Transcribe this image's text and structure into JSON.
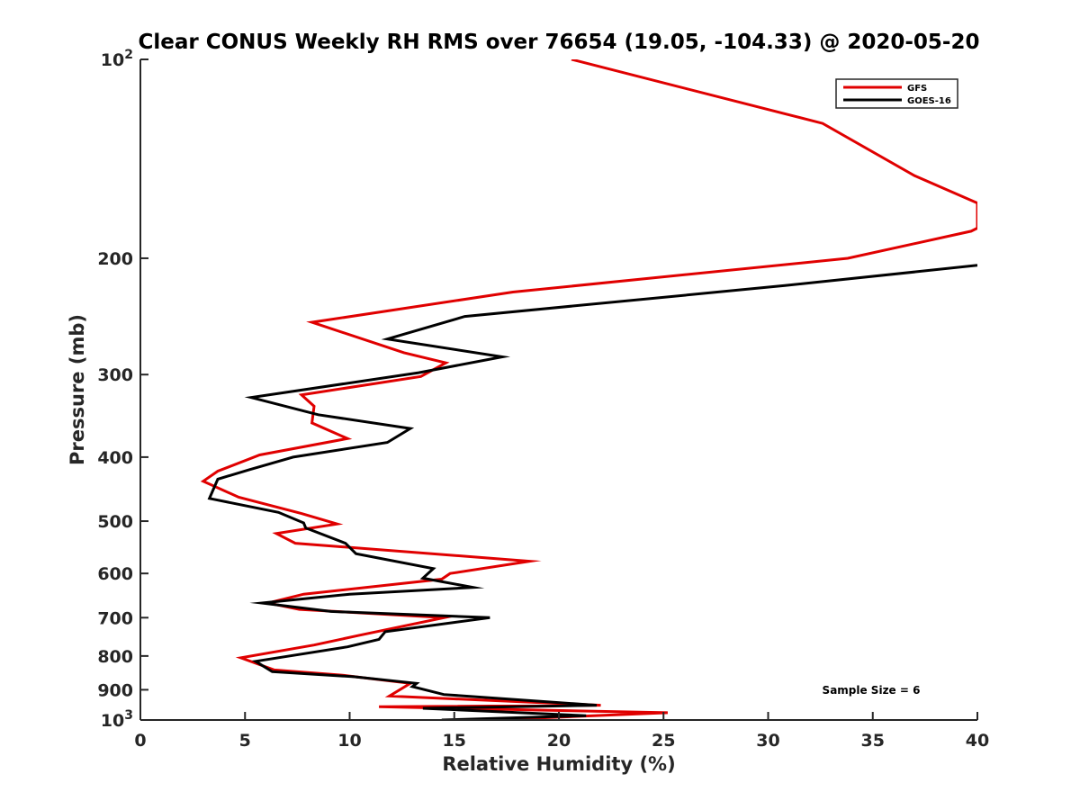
{
  "chart_data": {
    "type": "line",
    "title": "Clear CONUS Weekly RH RMS over 76654 (19.05, -104.33) @ 2020-05-20",
    "xlabel": "Relative Humidity (%)",
    "ylabel": "Pressure (mb)",
    "xlim": [
      0,
      40
    ],
    "ylim": [
      100,
      1000
    ],
    "yscale": "log",
    "yreversed": true,
    "xticks": [
      0,
      5,
      10,
      15,
      20,
      25,
      30,
      35,
      40
    ],
    "xtick_labels": [
      "0",
      "5",
      "10",
      "15",
      "20",
      "25",
      "30",
      "35",
      "40"
    ],
    "yticks": [
      100,
      200,
      300,
      400,
      500,
      600,
      700,
      800,
      900,
      1000
    ],
    "ytick_labels": [
      {
        "base": "10",
        "exp": "2"
      },
      {
        "base": "200",
        "exp": ""
      },
      {
        "base": "300",
        "exp": ""
      },
      {
        "base": "400",
        "exp": ""
      },
      {
        "base": "500",
        "exp": ""
      },
      {
        "base": "600",
        "exp": ""
      },
      {
        "base": "700",
        "exp": ""
      },
      {
        "base": "800",
        "exp": ""
      },
      {
        "base": "900",
        "exp": ""
      },
      {
        "base": "10",
        "exp": "3"
      }
    ],
    "legend_position": "top-right",
    "annotation": "Sample Size = 6",
    "series": [
      {
        "name": "GFS",
        "color": "#e00000",
        "points": [
          [
            20.6,
            100
          ],
          [
            32.6,
            125
          ],
          [
            37.0,
            150
          ],
          [
            40.0,
            165
          ],
          [
            40.0,
            180
          ],
          [
            39.7,
            182
          ],
          [
            33.8,
            200
          ],
          [
            17.8,
            225
          ],
          [
            8.2,
            250
          ],
          [
            12.6,
            278
          ],
          [
            14.6,
            288
          ],
          [
            13.4,
            302
          ],
          [
            7.7,
            322
          ],
          [
            8.3,
            335
          ],
          [
            8.2,
            355
          ],
          [
            9.9,
            375
          ],
          [
            5.7,
            397
          ],
          [
            3.7,
            420
          ],
          [
            3.0,
            435
          ],
          [
            4.7,
            460
          ],
          [
            7.7,
            487
          ],
          [
            9.4,
            505
          ],
          [
            6.5,
            522
          ],
          [
            7.4,
            540
          ],
          [
            18.6,
            575
          ],
          [
            14.8,
            600
          ],
          [
            14.4,
            612
          ],
          [
            7.8,
            645
          ],
          [
            6.1,
            665
          ],
          [
            7.6,
            680
          ],
          [
            14.5,
            700
          ],
          [
            10.4,
            745
          ],
          [
            8.3,
            770
          ],
          [
            4.8,
            805
          ],
          [
            6.4,
            840
          ],
          [
            9.6,
            855
          ],
          [
            12.9,
            880
          ],
          [
            11.9,
            920
          ],
          [
            22.0,
            950
          ],
          [
            11.4,
            955
          ],
          [
            25.2,
            975
          ],
          [
            16.7,
            1000
          ]
        ]
      },
      {
        "name": "GOES-16",
        "color": "#000000",
        "points": [
          [
            40.0,
            205
          ],
          [
            30.8,
            220
          ],
          [
            15.5,
            245
          ],
          [
            11.8,
            265
          ],
          [
            17.3,
            282
          ],
          [
            13.3,
            298
          ],
          [
            5.3,
            325
          ],
          [
            8.5,
            345
          ],
          [
            12.9,
            362
          ],
          [
            11.8,
            380
          ],
          [
            7.3,
            400
          ],
          [
            5.2,
            418
          ],
          [
            3.7,
            432
          ],
          [
            3.3,
            462
          ],
          [
            6.6,
            485
          ],
          [
            7.8,
            503
          ],
          [
            7.9,
            512
          ],
          [
            9.8,
            540
          ],
          [
            10.3,
            560
          ],
          [
            14.0,
            590
          ],
          [
            13.5,
            610
          ],
          [
            15.9,
            630
          ],
          [
            10.0,
            645
          ],
          [
            5.8,
            665
          ],
          [
            9.1,
            685
          ],
          [
            16.7,
            700
          ],
          [
            11.7,
            735
          ],
          [
            11.4,
            755
          ],
          [
            9.9,
            775
          ],
          [
            5.5,
            815
          ],
          [
            6.3,
            845
          ],
          [
            10.2,
            860
          ],
          [
            13.2,
            880
          ],
          [
            13.0,
            890
          ],
          [
            14.5,
            915
          ],
          [
            21.8,
            950
          ],
          [
            13.5,
            960
          ],
          [
            21.3,
            985
          ],
          [
            14.4,
            1000
          ]
        ]
      }
    ]
  }
}
